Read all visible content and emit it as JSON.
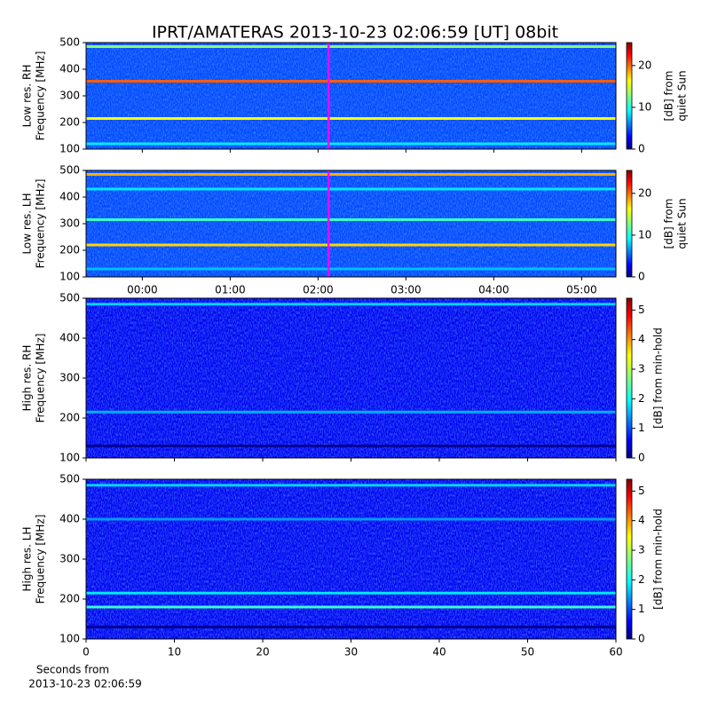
{
  "chart_data": [
    {
      "type": "spectrogram",
      "title": "IPRT/AMATERAS 2013-10-23 02:06:59 [UT]   08bit",
      "ylabel": [
        "Low res. RH",
        "Frequency [MHz]"
      ],
      "xlim": [
        -0.64,
        5.39
      ],
      "ylim": [
        100,
        500
      ],
      "yticks": [
        100,
        200,
        300,
        400,
        500
      ],
      "clim": [
        0,
        25.5
      ],
      "cticks": [
        0,
        10,
        20
      ],
      "clabel": [
        "[dB] from",
        "quiet Sun"
      ],
      "base_level": 5,
      "bands": [
        {
          "freq": 485,
          "level": 13
        },
        {
          "freq": 355,
          "level": 20
        },
        {
          "freq": 215,
          "level": 16
        },
        {
          "freq": 120,
          "level": 9
        }
      ],
      "marker": 2.12,
      "marker_color": "#ff00ff"
    },
    {
      "type": "spectrogram",
      "ylabel": [
        "Low res. LH",
        "Frequency [MHz]"
      ],
      "xlim": [
        -0.64,
        5.39
      ],
      "ylim": [
        100,
        500
      ],
      "yticks": [
        100,
        200,
        300,
        400,
        500
      ],
      "xticks": [
        {
          "value": 0,
          "label": "00:00"
        },
        {
          "value": 1,
          "label": "01:00"
        },
        {
          "value": 2,
          "label": "02:00"
        },
        {
          "value": 3,
          "label": "03:00"
        },
        {
          "value": 4,
          "label": "04:00"
        },
        {
          "value": 5,
          "label": "05:00"
        }
      ],
      "clim": [
        0,
        25.5
      ],
      "cticks": [
        0,
        10,
        20
      ],
      "clabel": [
        "[dB] from",
        "quiet Sun"
      ],
      "base_level": 5,
      "bands": [
        {
          "freq": 485,
          "level": 18
        },
        {
          "freq": 430,
          "level": 9
        },
        {
          "freq": 315,
          "level": 11
        },
        {
          "freq": 220,
          "level": 17
        },
        {
          "freq": 130,
          "level": 8
        }
      ],
      "marker": 2.12,
      "marker_color": "#ff00ff"
    },
    {
      "type": "spectrogram",
      "ylabel": [
        "High res. RH",
        "Frequency [MHz]"
      ],
      "xlim": [
        0,
        60
      ],
      "ylim": [
        100,
        500
      ],
      "yticks": [
        100,
        200,
        300,
        400,
        500
      ],
      "clim": [
        0,
        5.4
      ],
      "cticks": [
        0,
        1,
        2,
        3,
        4,
        5
      ],
      "clabel": [
        "[dB] from min-hold"
      ],
      "base_level": 0.6,
      "bands": [
        {
          "freq": 485,
          "level": 1.8
        },
        {
          "freq": 215,
          "level": 1.6
        },
        {
          "freq": 130,
          "level": 0.1
        }
      ]
    },
    {
      "type": "spectrogram",
      "ylabel": [
        "High res. LH",
        "Frequency [MHz]"
      ],
      "xlim": [
        0,
        60
      ],
      "ylim": [
        100,
        500
      ],
      "yticks": [
        100,
        200,
        300,
        400,
        500
      ],
      "xticks": [
        0,
        10,
        20,
        30,
        40,
        50,
        60
      ],
      "xlabel": [
        "Seconds from",
        "2013-10-23 02:06:59"
      ],
      "clim": [
        0,
        5.4
      ],
      "cticks": [
        0,
        1,
        2,
        3,
        4,
        5
      ],
      "clabel": [
        "[dB] from min-hold"
      ],
      "base_level": 0.6,
      "bands": [
        {
          "freq": 485,
          "level": 1.8
        },
        {
          "freq": 400,
          "level": 1.5
        },
        {
          "freq": 215,
          "level": 1.9
        },
        {
          "freq": 180,
          "level": 2.3
        },
        {
          "freq": 130,
          "level": 0.1
        }
      ]
    }
  ]
}
